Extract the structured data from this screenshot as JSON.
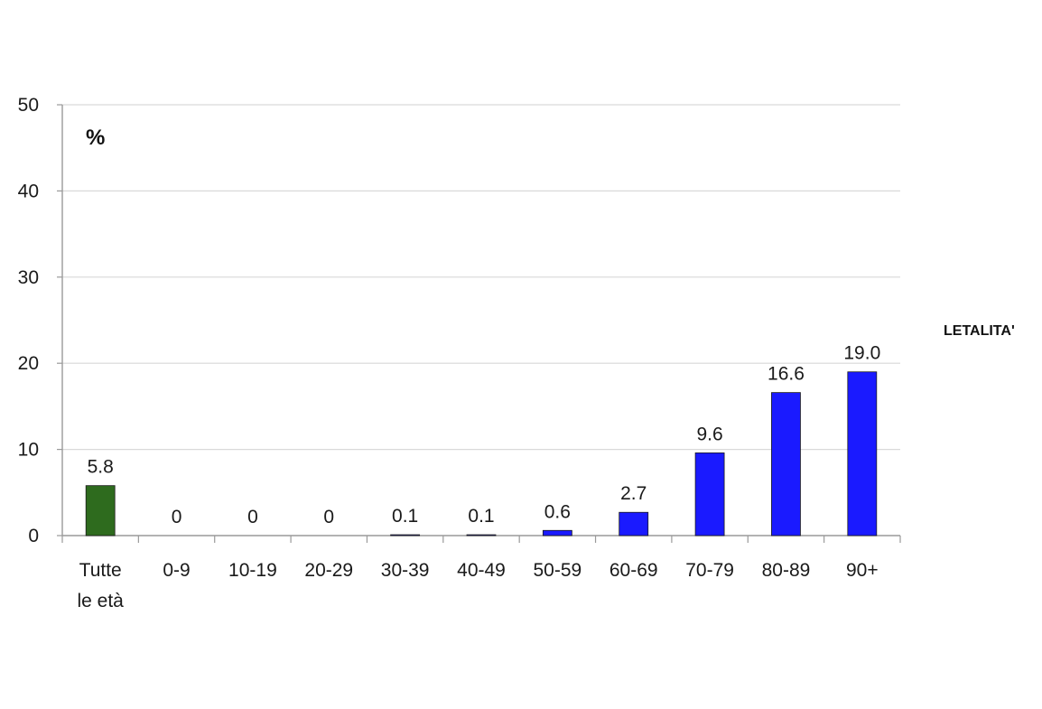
{
  "chart_data": {
    "type": "bar",
    "unit_label": "%",
    "series_label": "LETALITA'",
    "categories": [
      [
        "Tutte",
        "le età"
      ],
      [
        "0-9"
      ],
      [
        "10-19"
      ],
      [
        "20-29"
      ],
      [
        "30-39"
      ],
      [
        "40-49"
      ],
      [
        "50-59"
      ],
      [
        "60-69"
      ],
      [
        "70-79"
      ],
      [
        "80-89"
      ],
      [
        "90+"
      ]
    ],
    "values": [
      5.8,
      0,
      0,
      0,
      0.1,
      0.1,
      0.6,
      2.7,
      9.6,
      16.6,
      19.0
    ],
    "value_labels": [
      "5.8",
      "0",
      "0",
      "0",
      "0.1",
      "0.1",
      "0.6",
      "2.7",
      "9.6",
      "16.6",
      "19.0"
    ],
    "bar_colors": [
      "#2e6b1e",
      "#1a1aff",
      "#1a1aff",
      "#1a1aff",
      "#1a1aff",
      "#1a1aff",
      "#1a1aff",
      "#1a1aff",
      "#1a1aff",
      "#1a1aff",
      "#1a1aff"
    ],
    "ylim": [
      0,
      50
    ],
    "yticks": [
      0,
      10,
      20,
      30,
      40,
      50
    ],
    "grid": true,
    "legend": "none"
  }
}
